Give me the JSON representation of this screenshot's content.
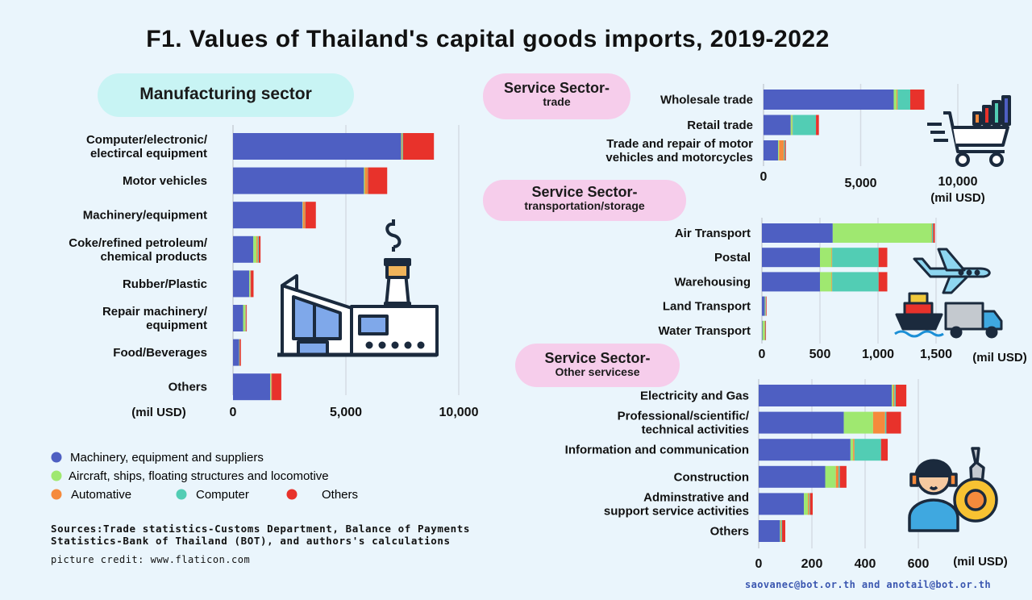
{
  "title": "F1. Values of Thailand's capital goods imports, 2019-2022",
  "colors": {
    "machinery": "#4e5fc2",
    "aircraft": "#9fe870",
    "automotive": "#f58a3c",
    "computer": "#52cdb4",
    "others": "#e8322b",
    "pill_cyan": "#c8f4f4",
    "pill_pink": "#f6cdeb"
  },
  "legend": [
    {
      "name": "Machinery, equipment and suppliers",
      "color": "#4e5fc2"
    },
    {
      "name": "Aircraft, ships, floating structures and locomotive",
      "color": "#9fe870"
    },
    {
      "name": "Automative",
      "color": "#f58a3c"
    },
    {
      "name": "Computer",
      "color": "#52cdb4"
    },
    {
      "name": "Others",
      "color": "#e8322b"
    }
  ],
  "sources": {
    "line1": "Sources:Trade statistics-Customs Department, Balance of Payments",
    "line2": "Statistics-Bank of Thailand (BOT), and authors's calculations"
  },
  "credit": "picture credit: www.flaticon.com",
  "contact": "saovanec@bot.or.th and anotail@bot.or.th",
  "chart_data": [
    {
      "type": "bar",
      "orientation": "horizontal",
      "stacked": true,
      "pill": {
        "line1": "Manufacturing sector",
        "line2": ""
      },
      "unit": "(mil USD)",
      "xlim": [
        0,
        10000
      ],
      "ticks": [
        {
          "v": 0,
          "label": "0"
        },
        {
          "v": 5000,
          "label": "5,000"
        },
        {
          "v": 10000,
          "label": "10,000"
        }
      ],
      "categories": [
        [
          "Computer/electronic/",
          "electircal equipment"
        ],
        [
          "Motor vehicles"
        ],
        [
          "Machinery/equipment"
        ],
        [
          "Coke/refined petroleum/",
          "chemical products"
        ],
        [
          "Rubber/Plastic"
        ],
        [
          "Repair machinery/",
          "equipment"
        ],
        [
          "Food/Beverages"
        ],
        [
          "Others"
        ]
      ],
      "series": [
        {
          "name": "Machinery, equipment and suppliers",
          "values": [
            7450,
            5800,
            3080,
            900,
            720,
            450,
            270,
            1650
          ]
        },
        {
          "name": "Aircraft, ships, floating structures and locomotive",
          "values": [
            30,
            40,
            20,
            140,
            40,
            90,
            15,
            30
          ]
        },
        {
          "name": "Automative",
          "values": [
            20,
            130,
            100,
            60,
            20,
            20,
            10,
            30
          ]
        },
        {
          "name": "Computer",
          "values": [
            30,
            10,
            10,
            40,
            10,
            20,
            5,
            10
          ]
        },
        {
          "name": "Others",
          "values": [
            1370,
            850,
            460,
            80,
            120,
            30,
            50,
            420
          ]
        }
      ]
    },
    {
      "type": "bar",
      "orientation": "horizontal",
      "stacked": true,
      "pill": {
        "line1": "Service Sector-",
        "line2": "trade"
      },
      "unit": "(mil USD)",
      "xlim": [
        0,
        10000
      ],
      "ticks": [
        {
          "v": 0,
          "label": "0"
        },
        {
          "v": 5000,
          "label": "5,000"
        },
        {
          "v": 10000,
          "label": "10,000"
        }
      ],
      "categories": [
        [
          "Wholesale trade"
        ],
        [
          "Retail trade"
        ],
        [
          "Trade and repair of motor",
          "vehicles and motorcycles"
        ]
      ],
      "series": [
        {
          "name": "Machinery, equipment and suppliers",
          "values": [
            6700,
            1400,
            750
          ]
        },
        {
          "name": "Aircraft, ships, floating structures and locomotive",
          "values": [
            150,
            80,
            50
          ]
        },
        {
          "name": "Automative",
          "values": [
            50,
            20,
            250
          ]
        },
        {
          "name": "Computer",
          "values": [
            650,
            1200,
            50
          ]
        },
        {
          "name": "Others",
          "values": [
            730,
            150,
            50
          ]
        }
      ]
    },
    {
      "type": "bar",
      "orientation": "horizontal",
      "stacked": true,
      "pill": {
        "line1": "Service Sector-",
        "line2": "transportation/storage"
      },
      "unit": "(mil USD)",
      "xlim": [
        0,
        2000
      ],
      "ticks": [
        {
          "v": 0,
          "label": "0"
        },
        {
          "v": 500,
          "label": "500"
        },
        {
          "v": 1000,
          "label": "1,000"
        },
        {
          "v": 1500,
          "label": "1,500"
        }
      ],
      "categories": [
        [
          "Air Transport"
        ],
        [
          "Postal"
        ],
        [
          "Warehousing"
        ],
        [
          "Land Transport"
        ],
        [
          "Water Transport"
        ]
      ],
      "series": [
        {
          "name": "Machinery, equipment and suppliers",
          "values": [
            610,
            500,
            500,
            25,
            5
          ]
        },
        {
          "name": "Aircraft, ships, floating structures and locomotive",
          "values": [
            850,
            100,
            100,
            5,
            20
          ]
        },
        {
          "name": "Automative",
          "values": [
            5,
            5,
            5,
            2,
            2
          ]
        },
        {
          "name": "Computer",
          "values": [
            10,
            400,
            400,
            3,
            3
          ]
        },
        {
          "name": "Others",
          "values": [
            15,
            75,
            75,
            5,
            5
          ]
        }
      ]
    },
    {
      "type": "bar",
      "orientation": "horizontal",
      "stacked": true,
      "pill": {
        "line1": "Service Sector-",
        "line2": "Other servicese"
      },
      "unit": "(mil USD)",
      "xlim": [
        0,
        700
      ],
      "ticks": [
        {
          "v": 0,
          "label": "0"
        },
        {
          "v": 200,
          "label": "200"
        },
        {
          "v": 400,
          "label": "400"
        },
        {
          "v": 600,
          "label": "600"
        }
      ],
      "categories": [
        [
          "Electricity and Gas"
        ],
        [
          "Professional/scientific/",
          "technical activities"
        ],
        [
          "Information and communication"
        ],
        [
          "Construction"
        ],
        [
          "Adminstrative and",
          "support service activities"
        ],
        [
          "Others"
        ]
      ],
      "series": [
        {
          "name": "Machinery, equipment and suppliers",
          "values": [
            500,
            320,
            345,
            250,
            170,
            80
          ]
        },
        {
          "name": "Aircraft, ships, floating structures and locomotive",
          "values": [
            5,
            110,
            10,
            40,
            15,
            3
          ]
        },
        {
          "name": "Automative",
          "values": [
            5,
            45,
            5,
            10,
            5,
            2
          ]
        },
        {
          "name": "Computer",
          "values": [
            5,
            5,
            100,
            5,
            3,
            3
          ]
        },
        {
          "name": "Others",
          "values": [
            40,
            55,
            25,
            25,
            10,
            12
          ]
        }
      ]
    }
  ]
}
